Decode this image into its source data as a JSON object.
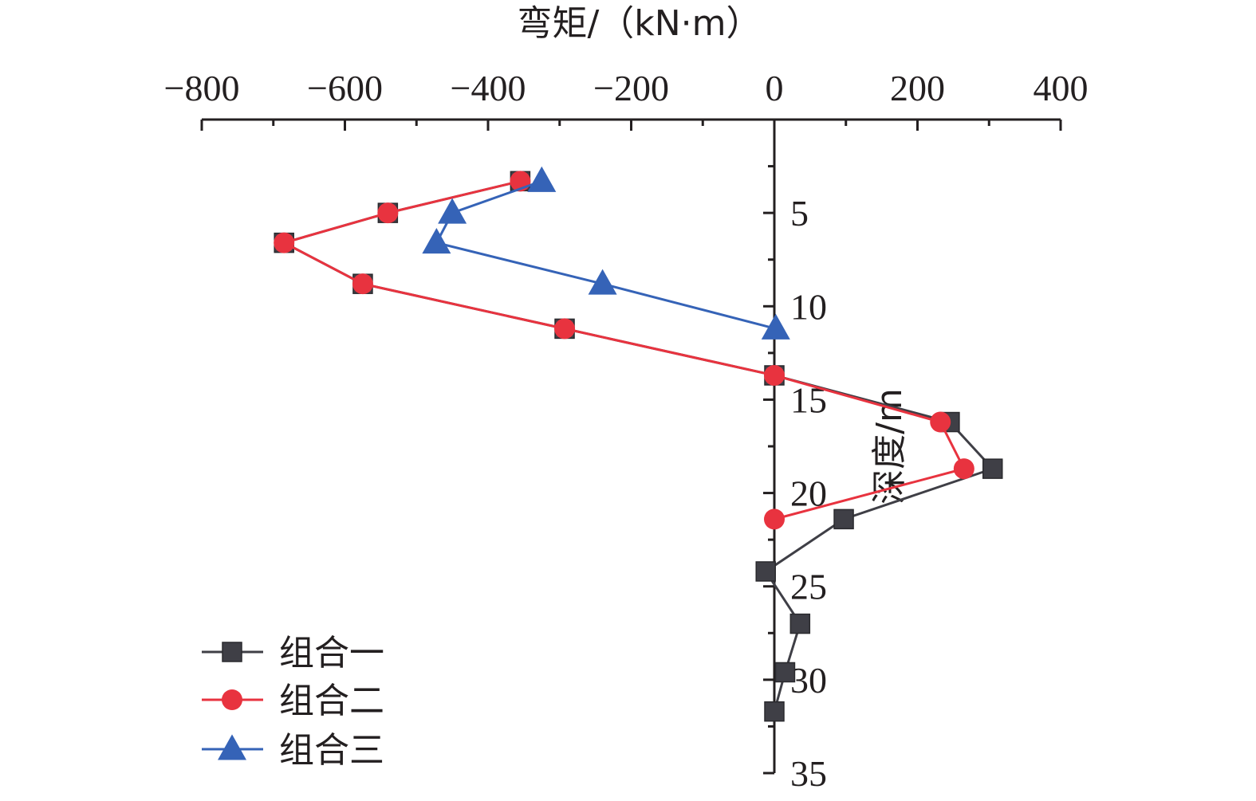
{
  "chart_data": {
    "type": "line",
    "xlabel": "弯矩/（kN·m）",
    "ylabel": "深度/m",
    "x_axis_position": "top",
    "y_axis_direction": "downward",
    "xlim": [
      -800,
      400
    ],
    "ylim": [
      0,
      35
    ],
    "x_ticks": [
      -800,
      -600,
      -400,
      -200,
      0,
      200,
      400
    ],
    "x_tick_labels": [
      "−800",
      "−600",
      "−400",
      "−200",
      "0",
      "200",
      "400"
    ],
    "y_ticks": [
      5,
      10,
      15,
      20,
      25,
      30,
      35
    ],
    "y_tick_labels": [
      "5",
      "10",
      "15",
      "20",
      "25",
      "30",
      "35"
    ],
    "grid": false,
    "legend_position": "bottom-left",
    "series": [
      {
        "name": "组合一",
        "color": "#3f3f46",
        "marker": "square",
        "points": [
          {
            "x": -355,
            "y": 3.3
          },
          {
            "x": -540,
            "y": 5.0
          },
          {
            "x": -685,
            "y": 6.6
          },
          {
            "x": -575,
            "y": 8.8
          },
          {
            "x": -293,
            "y": 11.2
          },
          {
            "x": 0,
            "y": 13.7
          },
          {
            "x": 245,
            "y": 16.2
          },
          {
            "x": 305,
            "y": 18.7
          },
          {
            "x": 97,
            "y": 21.4
          },
          {
            "x": -12,
            "y": 24.2
          },
          {
            "x": 36,
            "y": 27.0
          },
          {
            "x": 15,
            "y": 29.6
          },
          {
            "x": 0,
            "y": 31.7
          }
        ]
      },
      {
        "name": "组合二",
        "color": "#e8333f",
        "marker": "circle",
        "points": [
          {
            "x": -355,
            "y": 3.3
          },
          {
            "x": -540,
            "y": 5.0
          },
          {
            "x": -685,
            "y": 6.6
          },
          {
            "x": -575,
            "y": 8.8
          },
          {
            "x": -293,
            "y": 11.2
          },
          {
            "x": 0,
            "y": 13.7
          },
          {
            "x": 232,
            "y": 16.2
          },
          {
            "x": 265,
            "y": 18.7
          },
          {
            "x": 0,
            "y": 21.4
          }
        ]
      },
      {
        "name": "组合三",
        "color": "#3563b7",
        "marker": "triangle",
        "points": [
          {
            "x": -325,
            "y": 3.3
          },
          {
            "x": -450,
            "y": 5.0
          },
          {
            "x": -472,
            "y": 6.6
          },
          {
            "x": -240,
            "y": 8.8
          },
          {
            "x": 2,
            "y": 11.2
          }
        ]
      }
    ]
  }
}
